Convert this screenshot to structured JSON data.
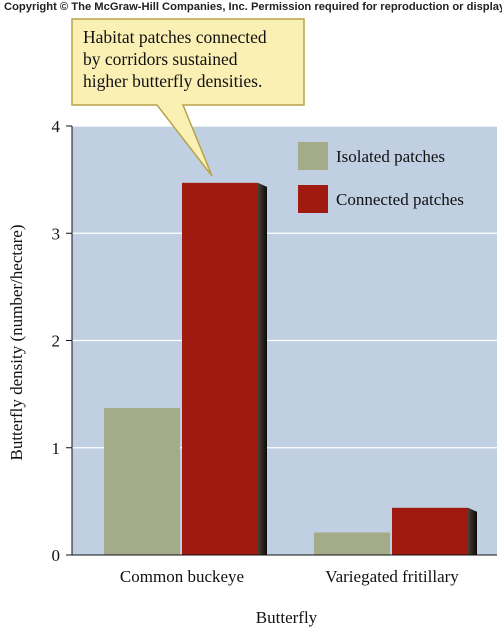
{
  "copyright": "Copyright © The McGraw-Hill Companies, Inc. Permission required for reproduction or display.",
  "colors": {
    "plot_background": "#c0d0e2",
    "callout_fill": "#fbf0b4",
    "callout_stroke": "#b8a24a"
  },
  "chart_data": {
    "type": "bar",
    "title": "",
    "xlabel": "Butterfly",
    "ylabel": "Butterfly density (number/hectare)",
    "ylim": [
      0,
      4
    ],
    "yticks": [
      "0",
      "1",
      "2",
      "3",
      "4"
    ],
    "grid": true,
    "legend_position": "top-right",
    "categories": [
      "Common buckeye",
      "Variegated fritillary"
    ],
    "series": [
      {
        "name": "Isolated patches",
        "color": "#a4ab88",
        "values": [
          1.37,
          0.21
        ]
      },
      {
        "name": "Connected patches",
        "color": "#a11a0f",
        "values": [
          3.47,
          0.44
        ]
      }
    ],
    "annotation": {
      "lines": [
        "Habitat patches connected",
        "by corridors sustained",
        "higher butterfly densities."
      ],
      "points_to": "Common buckeye / Connected patches"
    }
  }
}
